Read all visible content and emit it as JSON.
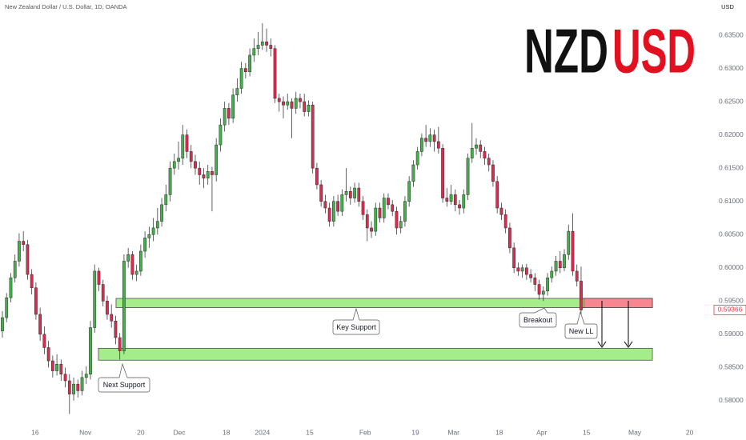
{
  "chart_data": {
    "type": "candlestick",
    "title": "New Zealand Dollar / U.S. Dollar, 1D, OANDA",
    "currency": "USD",
    "logo": [
      "NZD",
      "USD"
    ],
    "up_color": "#43b04a",
    "down_color": "#dc2b4f",
    "ohlc": [
      [
        0.5905,
        0.5935,
        0.5895,
        0.5925
      ],
      [
        0.5925,
        0.5962,
        0.5918,
        0.5955
      ],
      [
        0.5955,
        0.5992,
        0.5948,
        0.5985
      ],
      [
        0.5985,
        0.602,
        0.5978,
        0.601
      ],
      [
        0.601,
        0.6052,
        0.6002,
        0.604
      ],
      [
        0.604,
        0.6055,
        0.6025,
        0.6035
      ],
      [
        0.6035,
        0.6042,
        0.5982,
        0.599
      ],
      [
        0.599,
        0.5998,
        0.596,
        0.597
      ],
      [
        0.597,
        0.5978,
        0.5922,
        0.593
      ],
      [
        0.593,
        0.594,
        0.589,
        0.59
      ],
      [
        0.59,
        0.5912,
        0.587,
        0.588
      ],
      [
        0.588,
        0.589,
        0.585,
        0.586
      ],
      [
        0.586,
        0.5868,
        0.5835,
        0.5845
      ],
      [
        0.5845,
        0.587,
        0.5838,
        0.5855
      ],
      [
        0.5855,
        0.5862,
        0.583,
        0.584
      ],
      [
        0.584,
        0.585,
        0.582,
        0.583
      ],
      [
        0.583,
        0.584,
        0.578,
        0.581
      ],
      [
        0.581,
        0.5835,
        0.58,
        0.5825
      ],
      [
        0.5825,
        0.5832,
        0.5805,
        0.5815
      ],
      [
        0.5815,
        0.5845,
        0.5808,
        0.5835
      ],
      [
        0.5835,
        0.5852,
        0.5825,
        0.584
      ],
      [
        0.584,
        0.592,
        0.5832,
        0.591
      ],
      [
        0.591,
        0.6005,
        0.5902,
        0.5995
      ],
      [
        0.5995,
        0.6,
        0.5965,
        0.5975
      ],
      [
        0.5975,
        0.5982,
        0.5942,
        0.595
      ],
      [
        0.595,
        0.5958,
        0.5922,
        0.593
      ],
      [
        0.593,
        0.5945,
        0.591,
        0.592
      ],
      [
        0.592,
        0.5928,
        0.5885,
        0.5895
      ],
      [
        0.5895,
        0.5902,
        0.5862,
        0.5875
      ],
      [
        0.5875,
        0.602,
        0.587,
        0.601
      ],
      [
        0.601,
        0.603,
        0.6,
        0.602
      ],
      [
        0.602,
        0.6025,
        0.5982,
        0.599
      ],
      [
        0.599,
        0.6005,
        0.598,
        0.5995
      ],
      [
        0.5995,
        0.6035,
        0.5988,
        0.6025
      ],
      [
        0.6025,
        0.6055,
        0.6015,
        0.6045
      ],
      [
        0.6045,
        0.6062,
        0.603,
        0.605
      ],
      [
        0.605,
        0.6075,
        0.604,
        0.606
      ],
      [
        0.606,
        0.609,
        0.605,
        0.607
      ],
      [
        0.607,
        0.6105,
        0.6062,
        0.6095
      ],
      [
        0.6095,
        0.6125,
        0.6085,
        0.611
      ],
      [
        0.611,
        0.616,
        0.61,
        0.615
      ],
      [
        0.615,
        0.6172,
        0.614,
        0.616
      ],
      [
        0.616,
        0.619,
        0.6148,
        0.6165
      ],
      [
        0.6165,
        0.6215,
        0.6155,
        0.62
      ],
      [
        0.62,
        0.6208,
        0.6165,
        0.6175
      ],
      [
        0.6175,
        0.6185,
        0.615,
        0.616
      ],
      [
        0.616,
        0.617,
        0.614,
        0.615
      ],
      [
        0.615,
        0.616,
        0.6125,
        0.614
      ],
      [
        0.614,
        0.615,
        0.612,
        0.6135
      ],
      [
        0.6135,
        0.6155,
        0.6125,
        0.6145
      ],
      [
        0.6145,
        0.6152,
        0.6085,
        0.614
      ],
      [
        0.614,
        0.6195,
        0.613,
        0.6185
      ],
      [
        0.6185,
        0.6225,
        0.6175,
        0.6215
      ],
      [
        0.6215,
        0.625,
        0.6205,
        0.624
      ],
      [
        0.624,
        0.6248,
        0.6215,
        0.6225
      ],
      [
        0.6225,
        0.627,
        0.6218,
        0.626
      ],
      [
        0.626,
        0.6285,
        0.625,
        0.627
      ],
      [
        0.627,
        0.631,
        0.6262,
        0.63
      ],
      [
        0.63,
        0.6308,
        0.6285,
        0.6295
      ],
      [
        0.6295,
        0.633,
        0.6288,
        0.632
      ],
      [
        0.632,
        0.6345,
        0.631,
        0.633
      ],
      [
        0.633,
        0.6355,
        0.632,
        0.6335
      ],
      [
        0.6335,
        0.6368,
        0.6328,
        0.634
      ],
      [
        0.634,
        0.636,
        0.6325,
        0.6335
      ],
      [
        0.6335,
        0.6345,
        0.6318,
        0.633
      ],
      [
        0.633,
        0.6335,
        0.6248,
        0.6255
      ],
      [
        0.6255,
        0.6262,
        0.6235,
        0.625
      ],
      [
        0.625,
        0.6258,
        0.6225,
        0.6245
      ],
      [
        0.6245,
        0.6262,
        0.6238,
        0.625
      ],
      [
        0.625,
        0.6255,
        0.6195,
        0.624
      ],
      [
        0.624,
        0.6265,
        0.6232,
        0.6255
      ],
      [
        0.6255,
        0.6262,
        0.624,
        0.625
      ],
      [
        0.625,
        0.6262,
        0.6228,
        0.6235
      ],
      [
        0.6235,
        0.6252,
        0.6228,
        0.6245
      ],
      [
        0.6245,
        0.625,
        0.6142,
        0.615
      ],
      [
        0.615,
        0.6158,
        0.6118,
        0.6125
      ],
      [
        0.6125,
        0.6132,
        0.6092,
        0.61
      ],
      [
        0.61,
        0.611,
        0.6082,
        0.609
      ],
      [
        0.609,
        0.6098,
        0.6062,
        0.607
      ],
      [
        0.607,
        0.6108,
        0.6062,
        0.61
      ],
      [
        0.61,
        0.611,
        0.6078,
        0.6085
      ],
      [
        0.6085,
        0.6118,
        0.6078,
        0.611
      ],
      [
        0.611,
        0.615,
        0.61,
        0.6115
      ],
      [
        0.6115,
        0.6122,
        0.6095,
        0.6105
      ],
      [
        0.6105,
        0.6128,
        0.6098,
        0.612
      ],
      [
        0.612,
        0.6128,
        0.6092,
        0.61
      ],
      [
        0.61,
        0.6108,
        0.6072,
        0.608
      ],
      [
        0.608,
        0.6088,
        0.604,
        0.606
      ],
      [
        0.606,
        0.607,
        0.6045,
        0.6055
      ],
      [
        0.6055,
        0.6098,
        0.6048,
        0.609
      ],
      [
        0.609,
        0.6098,
        0.6068,
        0.6075
      ],
      [
        0.6075,
        0.6112,
        0.6068,
        0.6105
      ],
      [
        0.6105,
        0.6112,
        0.6088,
        0.6095
      ],
      [
        0.6095,
        0.6102,
        0.6078,
        0.6085
      ],
      [
        0.6085,
        0.6092,
        0.605,
        0.606
      ],
      [
        0.606,
        0.6078,
        0.6052,
        0.607
      ],
      [
        0.607,
        0.6108,
        0.6062,
        0.61
      ],
      [
        0.61,
        0.6138,
        0.6092,
        0.613
      ],
      [
        0.613,
        0.6162,
        0.6122,
        0.6155
      ],
      [
        0.6155,
        0.6182,
        0.6148,
        0.6175
      ],
      [
        0.6175,
        0.6202,
        0.6168,
        0.6195
      ],
      [
        0.6195,
        0.6215,
        0.6182,
        0.619
      ],
      [
        0.619,
        0.621,
        0.6182,
        0.62
      ],
      [
        0.62,
        0.6208,
        0.6175,
        0.619
      ],
      [
        0.619,
        0.6212,
        0.6172,
        0.618
      ],
      [
        0.618,
        0.6186,
        0.6098,
        0.6105
      ],
      [
        0.6105,
        0.612,
        0.6092,
        0.61
      ],
      [
        0.61,
        0.6125,
        0.6095,
        0.611
      ],
      [
        0.611,
        0.6118,
        0.6085,
        0.6095
      ],
      [
        0.6095,
        0.6102,
        0.608,
        0.609
      ],
      [
        0.609,
        0.6118,
        0.6082,
        0.611
      ],
      [
        0.611,
        0.6172,
        0.6102,
        0.6165
      ],
      [
        0.6165,
        0.6218,
        0.6158,
        0.618
      ],
      [
        0.618,
        0.6195,
        0.617,
        0.6185
      ],
      [
        0.6185,
        0.6192,
        0.6165,
        0.6175
      ],
      [
        0.6175,
        0.6182,
        0.6155,
        0.6165
      ],
      [
        0.6165,
        0.6172,
        0.6145,
        0.6155
      ],
      [
        0.6155,
        0.6162,
        0.6122,
        0.613
      ],
      [
        0.613,
        0.6138,
        0.6082,
        0.609
      ],
      [
        0.609,
        0.6098,
        0.6072,
        0.608
      ],
      [
        0.608,
        0.6088,
        0.6052,
        0.606
      ],
      [
        0.606,
        0.6068,
        0.6022,
        0.603
      ],
      [
        0.603,
        0.6038,
        0.5992,
        0.6
      ],
      [
        0.6,
        0.6008,
        0.5988,
        0.5995
      ],
      [
        0.5995,
        0.6005,
        0.5985,
        0.6
      ],
      [
        0.6,
        0.6006,
        0.5982,
        0.599
      ],
      [
        0.599,
        0.5998,
        0.5978,
        0.5985
      ],
      [
        0.5985,
        0.5992,
        0.5965,
        0.5975
      ],
      [
        0.5975,
        0.5982,
        0.5952,
        0.596
      ],
      [
        0.596,
        0.5972,
        0.595,
        0.5965
      ],
      [
        0.5965,
        0.5992,
        0.5958,
        0.5985
      ],
      [
        0.5985,
        0.6002,
        0.5978,
        0.5995
      ],
      [
        0.5995,
        0.6018,
        0.5988,
        0.601
      ],
      [
        0.601,
        0.6025,
        0.5992,
        0.6
      ],
      [
        0.6,
        0.6028,
        0.5995,
        0.602
      ],
      [
        0.602,
        0.6065,
        0.6012,
        0.6055
      ],
      [
        0.6055,
        0.6082,
        0.5988,
        0.5995
      ],
      [
        0.5995,
        0.6005,
        0.5972,
        0.598
      ],
      [
        0.598,
        0.6002,
        0.593,
        0.59366
      ]
    ],
    "xlim": [
      -0.57,
      167.4
    ],
    "xticks": [
      {
        "value": 7.8,
        "label": "16"
      },
      {
        "value": 19.8,
        "label": "Nov"
      },
      {
        "value": 33.0,
        "label": "20"
      },
      {
        "value": 42.2,
        "label": "Dec"
      },
      {
        "value": 53.4,
        "label": "18"
      },
      {
        "value": 62.0,
        "label": "2024"
      },
      {
        "value": 73.3,
        "label": "15"
      },
      {
        "value": 86.5,
        "label": "Feb"
      },
      {
        "value": 98.5,
        "label": "19"
      },
      {
        "value": 107.6,
        "label": "Mar"
      },
      {
        "value": 118.5,
        "label": "18"
      },
      {
        "value": 128.6,
        "label": "Apr"
      },
      {
        "value": 139.3,
        "label": "15"
      },
      {
        "value": 150.8,
        "label": "May"
      },
      {
        "value": 163.9,
        "label": "20"
      }
    ],
    "ylim": [
      0.5765,
      0.6403
    ],
    "yticks": [
      {
        "value": 0.58,
        "label": "0.58000"
      },
      {
        "value": 0.585,
        "label": "0.58500"
      },
      {
        "value": 0.59,
        "label": "0.59000"
      },
      {
        "value": 0.595,
        "label": "0.59500"
      },
      {
        "value": 0.6,
        "label": "0.60000"
      },
      {
        "value": 0.605,
        "label": "0.60500"
      },
      {
        "value": 0.61,
        "label": "0.61000"
      },
      {
        "value": 0.615,
        "label": "0.61500"
      },
      {
        "value": 0.62,
        "label": "0.62000"
      },
      {
        "value": 0.625,
        "label": "0.62500"
      },
      {
        "value": 0.63,
        "label": "0.63000"
      },
      {
        "value": 0.635,
        "label": "0.63500"
      }
    ],
    "last_price": {
      "value": 0.59366,
      "label": "0.59366"
    },
    "zones": [
      {
        "name": "Key Support",
        "low": 0.594,
        "high": 0.5954,
        "x": [
          27.1,
          155
        ],
        "color": "#a5ec8a"
      },
      {
        "name": "Next Support",
        "low": 0.5861,
        "high": 0.5879,
        "x": [
          22.9,
          155
        ],
        "color": "#a5ec8a"
      },
      {
        "low": 0.594,
        "high": 0.5954,
        "x": [
          138.7,
          155
        ],
        "color": "#f4878f"
      }
    ],
    "annotations": [
      "Breakout",
      "New LL"
    ]
  }
}
